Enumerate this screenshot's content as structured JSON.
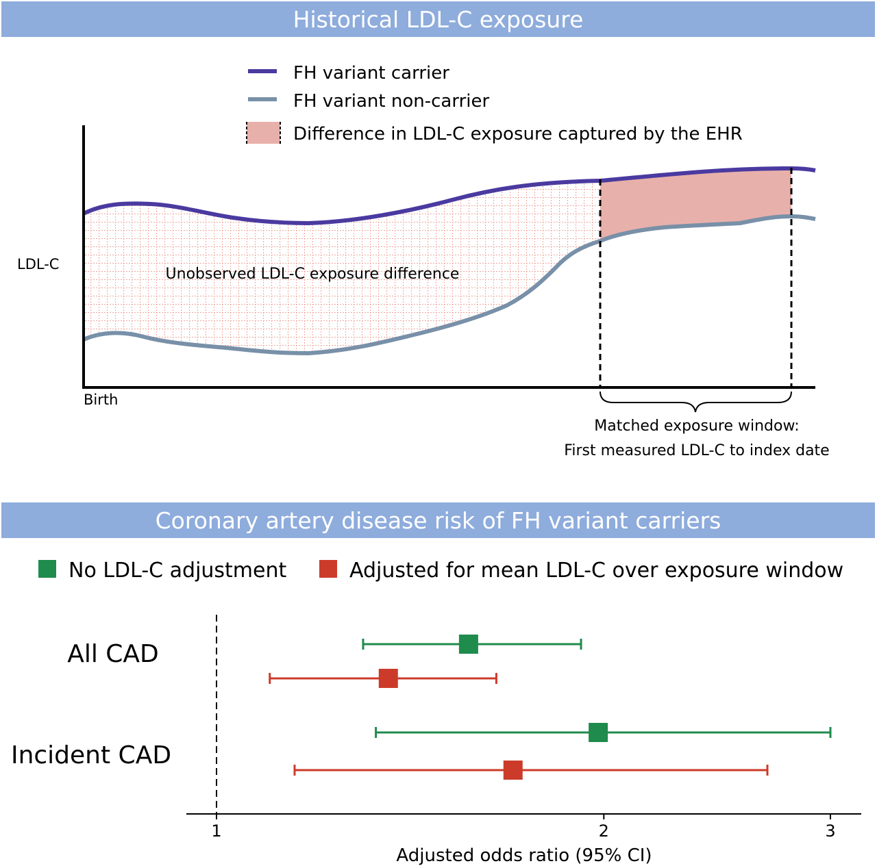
{
  "top_panel": {
    "title": "Historical LDL-C exposure",
    "legend": {
      "carrier": "FH variant carrier",
      "non_carrier": "FH variant non-carrier",
      "difference": "Difference in LDL-C exposure captured by the EHR"
    },
    "y_axis_label": "LDL-C",
    "x_axis_label": "Birth",
    "unobserved_label": "Unobserved LDL-C exposure difference",
    "window_label_line1": "Matched exposure window:",
    "window_label_line2": "First measured LDL-C to index date",
    "colors": {
      "carrier": "#4a3aa0",
      "non_carrier": "#7890a8",
      "difference_fill": "#e8b0aa",
      "hatch": "#f0a49a"
    }
  },
  "bottom_panel": {
    "title": "Coronary artery disease risk of FH variant carriers",
    "legend": {
      "no_adjust": "No LDL-C adjustment",
      "adjusted": "Adjusted for mean LDL-C over exposure window"
    },
    "colors": {
      "no_adjust": "#1f8b4c",
      "adjusted": "#cc3b2a"
    }
  },
  "chart_data": {
    "type": "forest",
    "xlabel": "Adjusted odds ratio (95% CI)",
    "xscale": "log",
    "xlim": [
      0.93,
      3.15
    ],
    "xticks": [
      1,
      2,
      3
    ],
    "reference_line": 1,
    "groups": [
      {
        "label": "All CAD",
        "estimates": [
          {
            "series": "No LDL-C adjustment",
            "or": 1.57,
            "lower": 1.3,
            "upper": 1.92
          },
          {
            "series": "Adjusted for mean LDL-C over exposure window",
            "or": 1.36,
            "lower": 1.1,
            "upper": 1.65
          }
        ]
      },
      {
        "label": "Incident CAD",
        "estimates": [
          {
            "series": "No LDL-C adjustment",
            "or": 1.98,
            "lower": 1.33,
            "upper": 3.0
          },
          {
            "series": "Adjusted for mean LDL-C over exposure window",
            "or": 1.7,
            "lower": 1.15,
            "upper": 2.68
          }
        ]
      }
    ]
  }
}
